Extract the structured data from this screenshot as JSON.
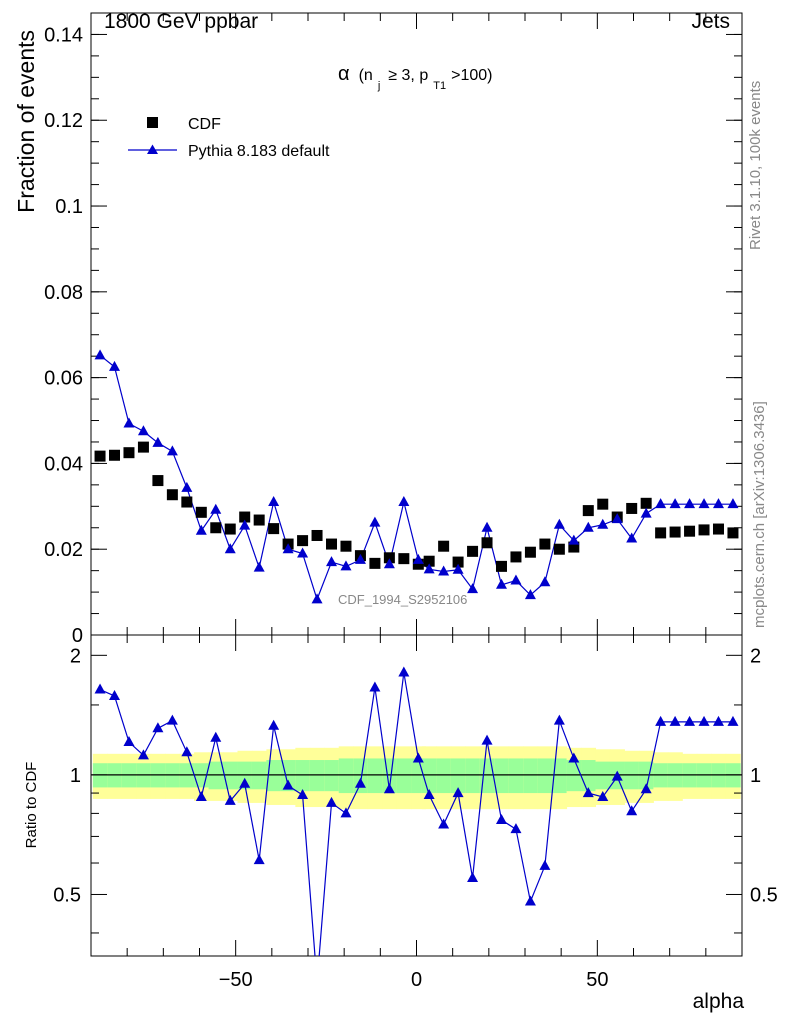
{
  "header": {
    "left": "1800 GeV ppbar",
    "right": "Jets"
  },
  "side_labels": {
    "rivet": "Rivet 3.1.10,  100k events",
    "mcplots": "mcplots.cern.ch [arXiv:1306.3436]"
  },
  "watermark": "CDF_1994_S2952106",
  "colors": {
    "data": "#000000",
    "mc": "#0000cc",
    "band_inner": "#99ff99",
    "band_outer": "#ffff99"
  },
  "chart_data": [
    {
      "type": "scatter",
      "panel": "main",
      "title_parts": {
        "symbol": "α",
        "p1": "(n",
        "s1": "j",
        "p2": "≥ 3, p",
        "s2": "T1",
        "p3": ">100)"
      },
      "ylabel": "Fraction of events",
      "xlim": [
        -90,
        90
      ],
      "ylim": [
        0,
        0.145
      ],
      "yticks": [
        0,
        0.02,
        0.04,
        0.06,
        0.08,
        0.1,
        0.12,
        0.14
      ],
      "ytick_labels": [
        "0",
        "0.02",
        "0.04",
        "0.06",
        "0.08",
        "0.1",
        "0.12",
        "0.14"
      ],
      "legend": {
        "position": "top-left",
        "entries": [
          {
            "name": "CDF",
            "marker": "square"
          },
          {
            "name": "Pythia 8.183 default",
            "marker": "triangle-line"
          }
        ]
      },
      "x": [
        -87.5,
        -83.5,
        -79.5,
        -75.5,
        -71.5,
        -67.5,
        -63.5,
        -59.5,
        -55.5,
        -51.5,
        -47.5,
        -43.5,
        -39.5,
        -35.5,
        -31.5,
        -27.5,
        -23.5,
        -19.5,
        -15.5,
        -11.5,
        -7.5,
        -3.5,
        0.5,
        3.5,
        7.5,
        11.5,
        15.5,
        19.5,
        23.5,
        27.5,
        31.5,
        35.5,
        39.5,
        43.5,
        47.5,
        51.5,
        55.5,
        59.5,
        63.5,
        67.5,
        71.5,
        75.5,
        79.5,
        83.5,
        87.5
      ],
      "series": [
        {
          "name": "CDF",
          "values": [
            0.0417,
            0.0419,
            0.0425,
            0.0438,
            0.036,
            0.0327,
            0.031,
            0.0286,
            0.025,
            0.0247,
            0.0275,
            0.0268,
            0.0248,
            0.0212,
            0.022,
            0.0232,
            0.0212,
            0.0207,
            0.0185,
            0.0167,
            0.018,
            0.0178,
            0.0165,
            0.0172,
            0.0207,
            0.017,
            0.0195,
            0.0215,
            0.016,
            0.0182,
            0.0193,
            0.0212,
            0.02,
            0.0205,
            0.029,
            0.0305,
            0.0275,
            0.0295,
            0.0307,
            0.0238,
            0.024,
            0.0242,
            0.0245,
            0.0247,
            0.0238
          ]
        },
        {
          "name": "Pythia 8.183 default",
          "x": [
            -87.5,
            -83.5,
            -79.5,
            -75.5,
            -71.5,
            -67.5,
            -63.5,
            -59.5,
            -55.5,
            -51.5,
            -47.5,
            -43.5,
            -39.5,
            -35.5,
            -31.5,
            -27.5,
            -23.5,
            -19.5,
            -15.5,
            -11.5,
            -7.5,
            -3.5,
            0.5,
            3.5,
            7.5,
            11.5,
            15.5,
            19.5,
            23.5,
            27.5,
            31.5,
            35.5,
            39.5,
            43.5,
            47.5,
            51.5,
            55.5,
            59.5,
            63.5,
            67.5,
            71.5,
            75.5,
            79.5,
            83.5,
            87.5
          ],
          "values": [
            0.0652,
            0.0625,
            0.0493,
            0.0475,
            0.0448,
            0.0428,
            0.0343,
            0.0243,
            0.0292,
            0.02,
            0.0255,
            0.0157,
            0.031,
            0.02,
            0.019,
            0.0083,
            0.017,
            0.016,
            0.0175,
            0.0262,
            0.0165,
            0.031,
            0.0175,
            0.0153,
            0.0148,
            0.0152,
            0.0107,
            0.025,
            0.0117,
            0.0127,
            0.0093,
            0.0123,
            0.0257,
            0.022,
            0.025,
            0.0257,
            0.027,
            0.0225,
            0.0283,
            0.0305,
            0.0305,
            0.0305,
            0.0305,
            0.0305,
            0.0305
          ]
        }
      ]
    },
    {
      "type": "line",
      "panel": "ratio",
      "ylabel": "Ratio to CDF",
      "xlabel": "alpha",
      "xlim": [
        -90,
        90
      ],
      "ylim": [
        0.35,
        2.25
      ],
      "yticks": [
        0.5,
        1,
        2
      ],
      "ytick_labels": [
        "0.5",
        "1",
        "2"
      ],
      "xticks": [
        -50,
        0,
        50
      ],
      "xtick_labels": [
        "−50",
        "0",
        "50"
      ],
      "reference_line": 1,
      "band_half_width_inner": [
        0.07,
        0.07,
        0.07,
        0.07,
        0.07,
        0.07,
        0.07,
        0.07,
        0.08,
        0.08,
        0.08,
        0.08,
        0.09,
        0.09,
        0.09,
        0.09,
        0.09,
        0.1,
        0.1,
        0.1,
        0.1,
        0.1,
        0.1,
        0.1,
        0.1,
        0.1,
        0.1,
        0.1,
        0.1,
        0.1,
        0.1,
        0.1,
        0.1,
        0.09,
        0.09,
        0.08,
        0.08,
        0.08,
        0.08,
        0.07,
        0.07,
        0.07,
        0.07,
        0.07,
        0.07
      ],
      "band_half_width_outer": [
        0.13,
        0.13,
        0.13,
        0.13,
        0.13,
        0.13,
        0.13,
        0.14,
        0.14,
        0.14,
        0.15,
        0.15,
        0.16,
        0.16,
        0.17,
        0.17,
        0.17,
        0.18,
        0.18,
        0.18,
        0.18,
        0.18,
        0.18,
        0.18,
        0.18,
        0.18,
        0.18,
        0.18,
        0.18,
        0.18,
        0.18,
        0.18,
        0.18,
        0.17,
        0.17,
        0.16,
        0.16,
        0.15,
        0.15,
        0.14,
        0.14,
        0.13,
        0.13,
        0.13,
        0.13
      ],
      "series": [
        {
          "name": "Pythia 8.183 default / CDF",
          "x": [
            -87.5,
            -83.5,
            -79.5,
            -75.5,
            -71.5,
            -67.5,
            -63.5,
            -59.5,
            -55.5,
            -51.5,
            -47.5,
            -43.5,
            -39.5,
            -35.5,
            -31.5,
            -27.5,
            -23.5,
            -19.5,
            -15.5,
            -11.5,
            -7.5,
            -3.5,
            0.5,
            3.5,
            7.5,
            11.5,
            15.5,
            19.5,
            23.5,
            27.5,
            31.5,
            35.5,
            39.5,
            43.5,
            47.5,
            51.5,
            55.5,
            59.5,
            63.5,
            67.5,
            71.5,
            75.5,
            79.5,
            83.5,
            87.5
          ],
          "values": [
            1.64,
            1.58,
            1.21,
            1.12,
            1.31,
            1.37,
            1.14,
            0.88,
            1.24,
            0.86,
            0.95,
            0.61,
            1.33,
            0.94,
            0.89,
            0.3,
            0.85,
            0.8,
            0.95,
            1.66,
            0.92,
            1.81,
            1.1,
            0.89,
            0.75,
            0.9,
            0.55,
            1.22,
            0.77,
            0.73,
            0.48,
            0.59,
            1.37,
            1.1,
            0.9,
            0.88,
            0.99,
            0.81,
            0.92,
            1.36,
            1.36,
            1.36,
            1.36,
            1.36,
            1.36
          ]
        }
      ]
    }
  ]
}
